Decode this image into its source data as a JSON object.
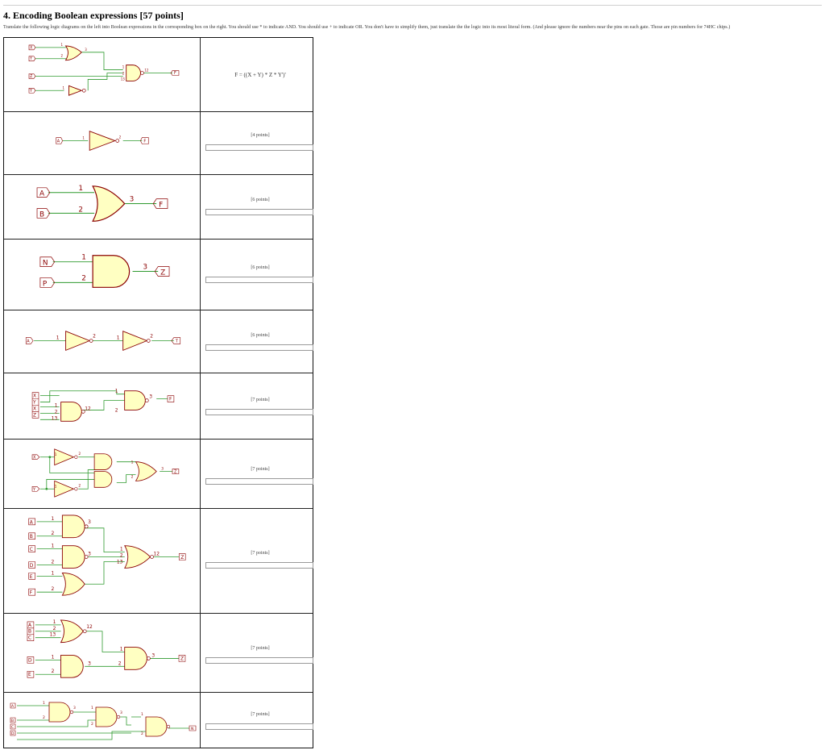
{
  "heading": {
    "title": "4. Encoding Boolean expressions [57 points]",
    "instructions": "Translate the following logic diagrams on the left into Boolean expressions in the corresponding box on the right. You should use * to indicate AND. You should use + to indicate OR. You don't have to simplify them, just translate the the logic into its most literal form. (And please ignore the numbers near the pins on each gate. Those are pin numbers for 74HC chips.)"
  },
  "rows": [
    {
      "answer": "F = ((X + Y) * Z * Y')'",
      "points": ""
    },
    {
      "answer": "",
      "points": "[4 points]"
    },
    {
      "answer": "",
      "points": "[6 points]"
    },
    {
      "answer": "",
      "points": "[6 points]"
    },
    {
      "answer": "",
      "points": "[6 points]"
    },
    {
      "answer": "",
      "points": "[7 points]"
    },
    {
      "answer": "",
      "points": "[7 points]"
    },
    {
      "answer": "",
      "points": "[7 points]"
    },
    {
      "answer": "",
      "points": "[7 points]"
    },
    {
      "answer": "",
      "points": "[7 points]"
    }
  ],
  "diagrams": {
    "d0": {
      "inputs": [
        "X",
        "Y",
        "Z",
        "Y"
      ],
      "output": "F",
      "pins": [
        "1",
        "2",
        "3",
        "1",
        "2",
        "13",
        "12",
        "1"
      ]
    },
    "d1": {
      "inputs": [
        "A"
      ],
      "output": "F",
      "pins": [
        "1",
        "2"
      ]
    },
    "d2": {
      "inputs": [
        "A",
        "B"
      ],
      "output": "F",
      "pins": [
        "1",
        "2",
        "3"
      ]
    },
    "d3": {
      "inputs": [
        "N",
        "P"
      ],
      "output": "Z",
      "pins": [
        "1",
        "2",
        "3"
      ]
    },
    "d4": {
      "inputs": [
        "A"
      ],
      "output": "T",
      "pins": [
        "1",
        "2",
        "1",
        "2"
      ]
    },
    "d5": {
      "inputs": [
        "X",
        "Y",
        "X",
        "Z"
      ],
      "output": "F",
      "pins": [
        "1",
        "2",
        "13",
        "12",
        "1",
        "2",
        "3"
      ]
    },
    "d6": {
      "inputs": [
        "X",
        "Y"
      ],
      "output": "Z",
      "pins": [
        "1",
        "2",
        "1",
        "2",
        "1",
        "2",
        "3"
      ]
    },
    "d7": {
      "inputs": [
        "A",
        "B",
        "C",
        "D",
        "E",
        "F"
      ],
      "output": "Z",
      "pins": [
        "1",
        "2",
        "3",
        "1",
        "2",
        "3",
        "1",
        "2",
        "1",
        "2",
        "13",
        "12"
      ]
    },
    "d8": {
      "inputs": [
        "A",
        "B",
        "C",
        "D",
        "E"
      ],
      "output": "Z",
      "pins": [
        "1",
        "2",
        "13",
        "12",
        "1",
        "2",
        "3",
        "1",
        "2",
        "3"
      ]
    },
    "d9": {
      "inputs": [
        "A",
        "B",
        "C",
        "D"
      ],
      "output": "N",
      "pins": [
        "1",
        "2",
        "3",
        "1",
        "2",
        "3",
        "1",
        "2"
      ]
    }
  },
  "colors": {
    "gate_fill": "#ffffc2",
    "gate_stroke": "#8b0000",
    "wire": "#2f9a2f",
    "pin_text": "#8b0000"
  }
}
